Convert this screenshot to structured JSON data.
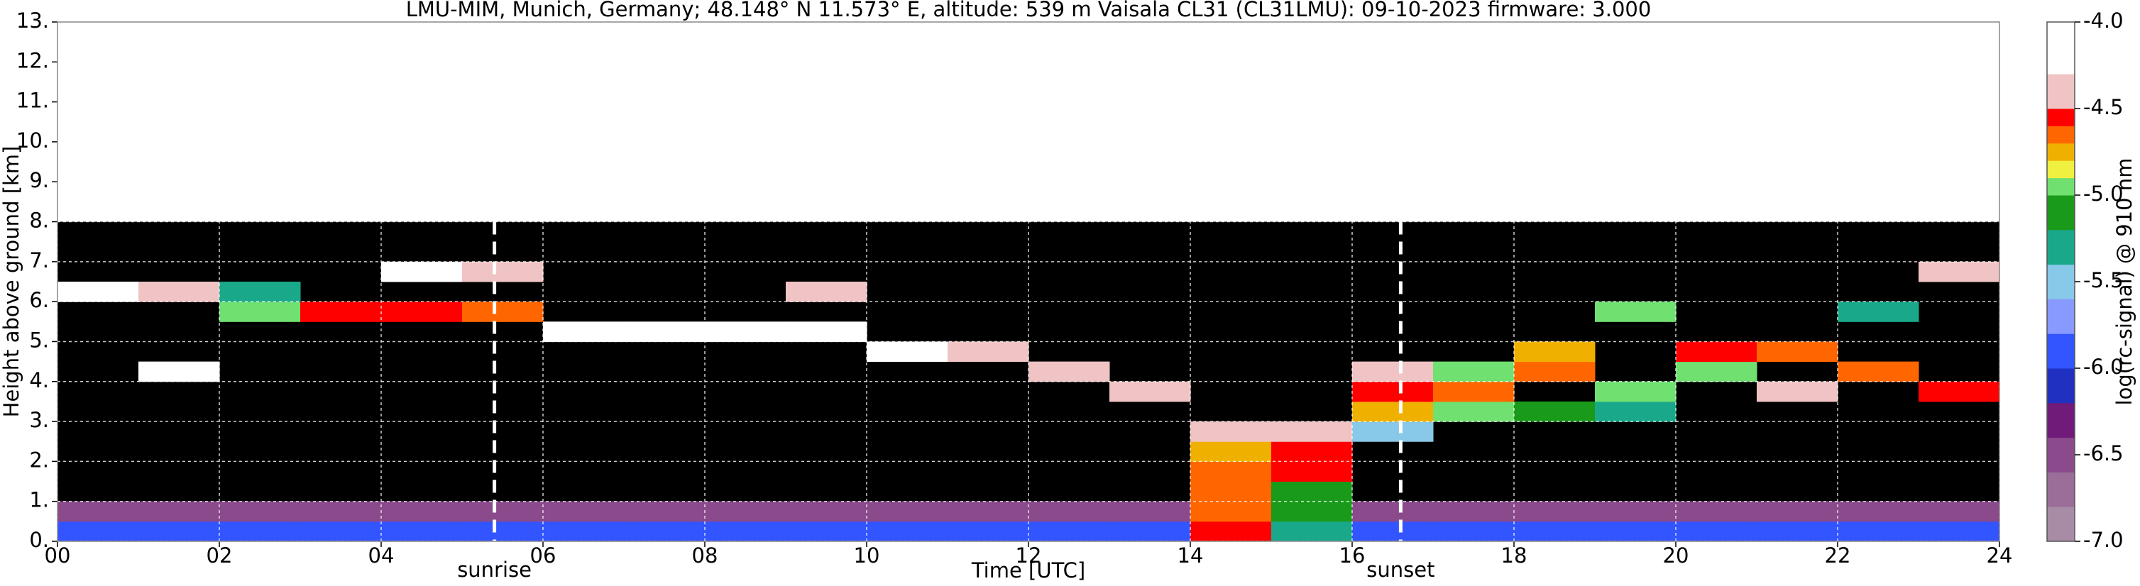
{
  "chart_data": {
    "type": "heatmap",
    "title": "LMU-MIM, Munich, Germany; 48.148° N 11.573° E, altitude: 539 m    Vaisala CL31 (CL31LMU): 09-10-2023    firmware: 3.000",
    "x_label": "Time [UTC]",
    "y_label": "Height above ground [km]",
    "colorbar_label": "log(rc-signal) @ 910 nm",
    "x": [
      0,
      1,
      2,
      3,
      4,
      5,
      6,
      7,
      8,
      9,
      10,
      11,
      12,
      13,
      14,
      15,
      16,
      17,
      18,
      19,
      20,
      21,
      22,
      23,
      24
    ],
    "y": [
      0,
      0.5,
      1,
      1.5,
      2,
      2.5,
      3,
      3.5,
      4,
      4.5,
      5,
      5.5,
      6,
      6.5,
      7,
      7.5,
      8
    ],
    "z": [
      [
        -6.0,
        -6.0,
        -6.0,
        -6.0,
        -6.0,
        -6.0,
        -6.0,
        -6.0,
        -6.0,
        -6.0,
        -6.0,
        -6.0,
        -6.0,
        -6.0,
        -4.6,
        -5.4,
        -6.0,
        -6.0,
        -6.0,
        -6.0,
        -6.0,
        -6.0,
        -6.0,
        -6.0
      ],
      [
        -6.5,
        -6.5,
        -6.5,
        -6.5,
        -6.5,
        -6.5,
        -6.5,
        -6.5,
        -6.5,
        -6.5,
        -6.5,
        -6.5,
        -6.5,
        -6.5,
        -4.7,
        -5.2,
        -6.6,
        -6.6,
        -6.6,
        -6.6,
        -6.6,
        -6.6,
        -6.6,
        -6.6
      ],
      [
        null,
        null,
        null,
        null,
        null,
        null,
        null,
        null,
        null,
        null,
        null,
        null,
        null,
        null,
        -4.7,
        -5.2,
        null,
        null,
        null,
        null,
        null,
        null,
        null,
        null
      ],
      [
        null,
        null,
        null,
        null,
        null,
        null,
        null,
        null,
        null,
        null,
        null,
        null,
        null,
        null,
        -4.7,
        -4.6,
        null,
        null,
        null,
        null,
        null,
        null,
        null,
        null
      ],
      [
        null,
        null,
        null,
        null,
        null,
        null,
        null,
        null,
        null,
        null,
        null,
        null,
        null,
        null,
        -4.8,
        -4.6,
        null,
        null,
        null,
        null,
        null,
        null,
        null,
        null
      ],
      [
        null,
        null,
        null,
        null,
        null,
        null,
        null,
        null,
        null,
        null,
        null,
        null,
        null,
        null,
        -4.5,
        -4.5,
        -5.6,
        null,
        null,
        null,
        null,
        null,
        null,
        null
      ],
      [
        null,
        null,
        null,
        null,
        null,
        null,
        null,
        null,
        null,
        null,
        null,
        null,
        null,
        null,
        null,
        null,
        -4.8,
        -5.0,
        -5.2,
        -5.3,
        null,
        null,
        null,
        null
      ],
      [
        null,
        null,
        null,
        null,
        null,
        null,
        null,
        null,
        null,
        null,
        null,
        null,
        null,
        -4.5,
        null,
        null,
        -4.6,
        -4.7,
        null,
        -5.0,
        null,
        -4.5,
        null,
        -4.6
      ],
      [
        null,
        -4.3,
        null,
        null,
        null,
        null,
        null,
        null,
        null,
        null,
        null,
        null,
        -4.4,
        null,
        null,
        null,
        -4.5,
        -5.0,
        -4.7,
        null,
        -5.0,
        null,
        -4.7,
        null
      ],
      [
        null,
        null,
        null,
        null,
        null,
        null,
        null,
        null,
        null,
        null,
        -4.3,
        -4.4,
        null,
        null,
        null,
        null,
        null,
        null,
        -4.8,
        null,
        -4.6,
        -4.7,
        null,
        null
      ],
      [
        null,
        null,
        null,
        null,
        null,
        null,
        -4.3,
        -4.3,
        -4.3,
        -4.3,
        null,
        null,
        null,
        null,
        null,
        null,
        null,
        null,
        null,
        null,
        null,
        null,
        null,
        null
      ],
      [
        null,
        null,
        -5.0,
        -4.6,
        -4.6,
        -4.7,
        null,
        null,
        null,
        null,
        null,
        null,
        null,
        null,
        null,
        null,
        null,
        null,
        null,
        -5.0,
        null,
        null,
        -5.3,
        null
      ],
      [
        -4.2,
        -4.5,
        -5.4,
        null,
        null,
        null,
        null,
        null,
        null,
        -4.4,
        null,
        null,
        null,
        null,
        null,
        null,
        null,
        null,
        null,
        null,
        null,
        null,
        null,
        null
      ],
      [
        null,
        null,
        null,
        null,
        -4.2,
        -4.4,
        null,
        null,
        null,
        null,
        null,
        null,
        null,
        null,
        null,
        null,
        null,
        null,
        null,
        null,
        null,
        null,
        null,
        -4.5
      ],
      [
        null,
        null,
        null,
        null,
        null,
        null,
        null,
        null,
        null,
        null,
        null,
        null,
        null,
        null,
        null,
        null,
        null,
        null,
        null,
        null,
        null,
        null,
        null,
        null
      ],
      [
        null,
        null,
        null,
        null,
        null,
        null,
        null,
        null,
        null,
        null,
        null,
        null,
        null,
        null,
        null,
        null,
        null,
        null,
        null,
        null,
        null,
        null,
        null,
        null
      ]
    ],
    "xlim": [
      0,
      24
    ],
    "ylim": [
      0,
      13
    ],
    "xticks": [
      {
        "value": 0,
        "label": "00"
      },
      {
        "value": 2,
        "label": "02"
      },
      {
        "value": 4,
        "label": "04"
      },
      {
        "value": 6,
        "label": "06"
      },
      {
        "value": 8,
        "label": "08"
      },
      {
        "value": 10,
        "label": "10"
      },
      {
        "value": 12,
        "label": "12"
      },
      {
        "value": 14,
        "label": "14"
      },
      {
        "value": 16,
        "label": "16"
      },
      {
        "value": 18,
        "label": "18"
      },
      {
        "value": 20,
        "label": "20"
      },
      {
        "value": 22,
        "label": "22"
      },
      {
        "value": 24,
        "label": "24"
      }
    ],
    "yticks": [
      {
        "value": 0,
        "label": "0."
      },
      {
        "value": 1,
        "label": "1."
      },
      {
        "value": 2,
        "label": "2."
      },
      {
        "value": 3,
        "label": "3."
      },
      {
        "value": 4,
        "label": "4."
      },
      {
        "value": 5,
        "label": "5."
      },
      {
        "value": 6,
        "label": "6."
      },
      {
        "value": 7,
        "label": "7."
      },
      {
        "value": 8,
        "label": "8."
      },
      {
        "value": 9,
        "label": "9."
      },
      {
        "value": 10,
        "label": "10."
      },
      {
        "value": 11,
        "label": "11."
      },
      {
        "value": 12,
        "label": "12."
      },
      {
        "value": 13,
        "label": "13."
      }
    ],
    "clim": [
      -7,
      -4
    ],
    "cticks": [
      {
        "value": -7,
        "label": "-7.0"
      },
      -6.5,
      {
        "value": -6,
        "label": "-6.0"
      },
      -5.5,
      {
        "value": -5,
        "label": "-5.0"
      },
      -4.5,
      {
        "value": -4,
        "label": "-4.0"
      }
    ],
    "colormap": [
      {
        "value": -7.0,
        "color": "#a88ca6"
      },
      {
        "value": -6.8,
        "color": "#9a6e99"
      },
      {
        "value": -6.6,
        "color": "#8a4a8c"
      },
      {
        "value": -6.4,
        "color": "#701a7a"
      },
      {
        "value": -6.2,
        "color": "#2030c0"
      },
      {
        "value": -6.0,
        "color": "#3355ff"
      },
      {
        "value": -5.8,
        "color": "#8899ff"
      },
      {
        "value": -5.6,
        "color": "#88c8e8"
      },
      {
        "value": -5.4,
        "color": "#1aa88a"
      },
      {
        "value": -5.2,
        "color": "#1a9a1a"
      },
      {
        "value": -5.0,
        "color": "#70e070"
      },
      {
        "value": -4.9,
        "color": "#f0f040"
      },
      {
        "value": -4.8,
        "color": "#f0b000"
      },
      {
        "value": -4.7,
        "color": "#ff6600"
      },
      {
        "value": -4.6,
        "color": "#ff0000"
      },
      {
        "value": -4.5,
        "color": "#f0c4c4"
      },
      {
        "value": -4.3,
        "color": "#ffffff"
      }
    ],
    "no_signal_color": "#000000",
    "grid": true,
    "annotations": [
      {
        "x": 5.4,
        "text": "sunrise"
      },
      {
        "x": 16.6,
        "text": "sunset"
      }
    ]
  }
}
